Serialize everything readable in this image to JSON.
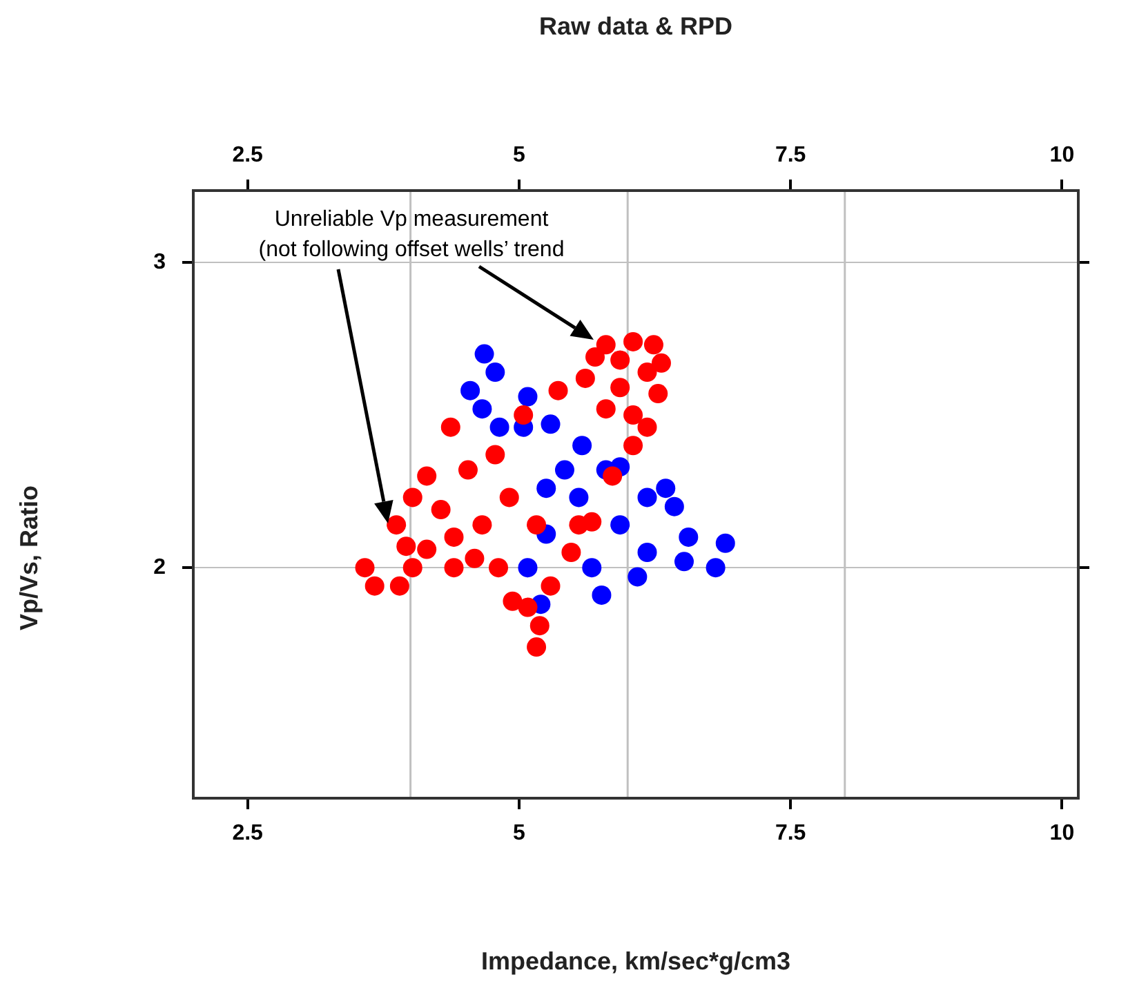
{
  "chart_data": {
    "type": "scatter",
    "title": "Raw data & RPD",
    "xlabel": "Impedance, km/sec*g/cm3",
    "ylabel": "Vp/Vs, Ratio",
    "annotations": [
      "Unreliable Vp measurement",
      "(not following offset wells’ trend"
    ],
    "xlim": [
      2,
      10.15
    ],
    "xticks": [
      2.5,
      5,
      7.5,
      10
    ],
    "x2lim": [
      2,
      10.15
    ],
    "x2ticks": [
      2.5,
      5,
      7.5,
      10
    ],
    "ylim": [
      1.245,
      3.235
    ],
    "yticks": [
      2,
      3
    ],
    "grid": "y",
    "marker": "circle",
    "ref_lines": [
      {
        "axis": "x",
        "value": 4,
        "color": "#c0c0c0"
      },
      {
        "axis": "x",
        "value": 6,
        "color": "#c0c0c0"
      },
      {
        "axis": "x",
        "value": 8,
        "color": "#c0c0c0"
      }
    ],
    "series": [
      {
        "color": "#ff0000",
        "x": [
          3.58,
          3.67,
          3.9,
          4.02,
          4.15,
          4.4,
          4.59,
          4.81,
          4.94,
          5.08,
          5.16,
          5.19,
          5.29,
          5.48,
          5.67,
          5.86,
          6.05,
          6.18,
          6.28,
          6.31,
          6.24,
          6.05,
          5.8,
          5.7,
          5.61,
          5.36,
          5.04,
          4.37,
          4.15,
          4.02,
          3.87,
          3.96,
          4.28,
          4.53,
          4.78,
          4.91,
          4.66,
          4.4,
          5.16,
          5.55,
          5.93,
          6.05,
          5.8,
          6.18,
          5.93
        ],
        "values": [
          2.0,
          1.94,
          1.94,
          2.0,
          2.06,
          2.0,
          2.03,
          2.0,
          1.89,
          1.87,
          1.74,
          1.81,
          1.94,
          2.05,
          2.15,
          2.3,
          2.4,
          2.46,
          2.57,
          2.67,
          2.73,
          2.74,
          2.73,
          2.69,
          2.62,
          2.58,
          2.5,
          2.46,
          2.3,
          2.23,
          2.14,
          2.07,
          2.19,
          2.32,
          2.37,
          2.23,
          2.14,
          2.1,
          2.14,
          2.14,
          2.59,
          2.5,
          2.52,
          2.64,
          2.68
        ]
      },
      {
        "color": "#0000ff",
        "x": [
          4.68,
          4.55,
          4.78,
          5.08,
          5.29,
          5.58,
          5.93,
          6.35,
          6.43,
          6.9,
          6.81,
          6.52,
          6.09,
          5.76,
          5.2,
          5.08,
          5.25,
          5.25,
          4.82,
          4.66,
          5.93,
          6.18,
          5.67,
          5.55,
          6.18,
          6.56,
          5.8,
          5.42,
          5.04
        ],
        "values": [
          2.7,
          2.58,
          2.64,
          2.56,
          2.47,
          2.4,
          2.33,
          2.26,
          2.2,
          2.08,
          2.0,
          2.02,
          1.97,
          1.91,
          1.88,
          2.0,
          2.11,
          2.26,
          2.46,
          2.52,
          2.14,
          2.05,
          2.0,
          2.23,
          2.23,
          2.1,
          2.32,
          2.32,
          2.46
        ]
      }
    ]
  }
}
